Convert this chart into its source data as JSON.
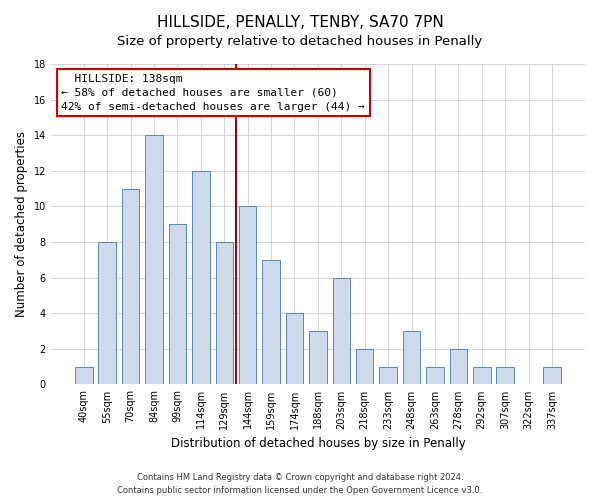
{
  "title": "HILLSIDE, PENALLY, TENBY, SA70 7PN",
  "subtitle": "Size of property relative to detached houses in Penally",
  "xlabel": "Distribution of detached houses by size in Penally",
  "ylabel": "Number of detached properties",
  "bar_labels": [
    "40sqm",
    "55sqm",
    "70sqm",
    "84sqm",
    "99sqm",
    "114sqm",
    "129sqm",
    "144sqm",
    "159sqm",
    "174sqm",
    "188sqm",
    "203sqm",
    "218sqm",
    "233sqm",
    "248sqm",
    "263sqm",
    "278sqm",
    "292sqm",
    "307sqm",
    "322sqm",
    "337sqm"
  ],
  "bar_values": [
    1,
    8,
    11,
    14,
    9,
    12,
    8,
    10,
    7,
    4,
    3,
    6,
    2,
    1,
    3,
    1,
    2,
    1,
    1,
    0,
    1
  ],
  "bar_color": "#ccdaeb",
  "bar_edge_color": "#5588bb",
  "vline_color": "#aa0000",
  "annotation_title": "HILLSIDE: 138sqm",
  "annotation_line1": "← 58% of detached houses are smaller (60)",
  "annotation_line2": "42% of semi-detached houses are larger (44) →",
  "annotation_box_color": "#ffffff",
  "annotation_box_edge": "#cc0000",
  "ylim": [
    0,
    18
  ],
  "yticks": [
    0,
    2,
    4,
    6,
    8,
    10,
    12,
    14,
    16,
    18
  ],
  "footer1": "Contains HM Land Registry data © Crown copyright and database right 2024.",
  "footer2": "Contains public sector information licensed under the Open Government Licence v3.0.",
  "background_color": "#ffffff",
  "plot_background": "#ffffff",
  "grid_color": "#cccccc",
  "title_fontsize": 11,
  "subtitle_fontsize": 9.5,
  "tick_fontsize": 7,
  "label_fontsize": 8.5,
  "annotation_fontsize": 8,
  "footer_fontsize": 6
}
